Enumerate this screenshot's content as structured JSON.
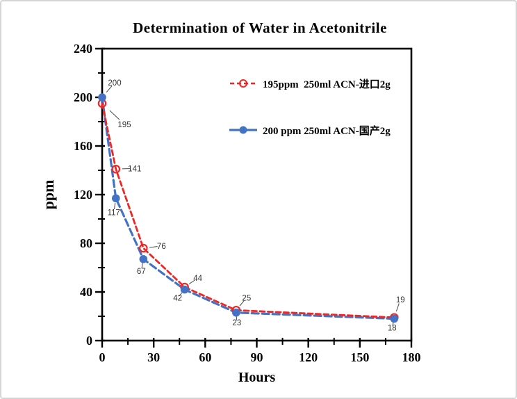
{
  "frame": {
    "background": "#ffffff",
    "border_color": "#d5d5d5"
  },
  "chart_data": {
    "type": "line",
    "title": "Determination of Water in Acetonitrile",
    "xlabel": "Hours",
    "ylabel": "ppm",
    "xlim": [
      0,
      180
    ],
    "xtick_step": 30,
    "xminor_step": 15,
    "ylim": [
      0,
      240
    ],
    "ytick_step": 40,
    "yminor_step": 20,
    "grid": false,
    "legend_position": "top-right-inside",
    "x": [
      0,
      8,
      24,
      48,
      78,
      170
    ],
    "series": [
      {
        "name": "195ppm  250ml ACN-进口2g",
        "color": "#ee2724",
        "marker": "open-circle",
        "line_style": "dashed",
        "values": [
          195,
          141,
          76,
          44,
          25,
          19
        ]
      },
      {
        "name": "200 ppm 250ml ACN-国产2g",
        "color": "#4472c4",
        "marker": "filled-circle",
        "line_style": "dashed",
        "values": [
          200,
          117,
          67,
          42,
          23,
          18
        ]
      }
    ],
    "axis_color": "#000000",
    "point_label_color": "#333333",
    "leader_color": "#4a4a4a"
  }
}
